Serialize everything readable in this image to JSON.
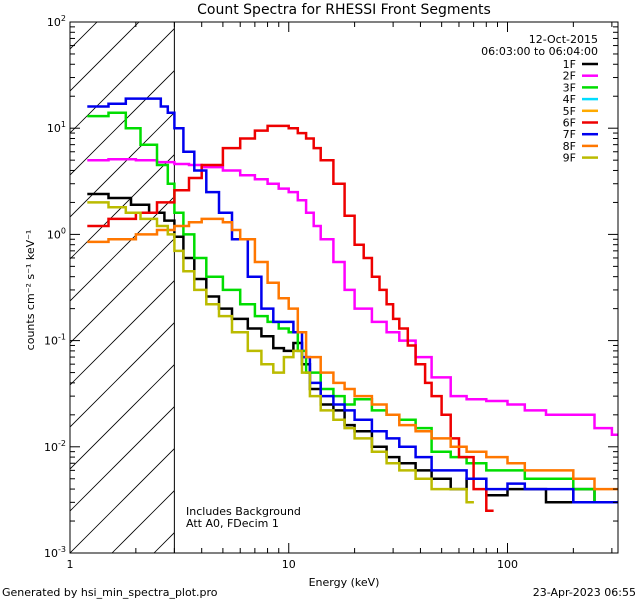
{
  "chart_data": {
    "type": "line",
    "title": "Count Spectra for RHESSI Front Segments",
    "date": "12-Oct-2015",
    "time_range": "06:03:00 to 06:04:00",
    "xlabel": "Energy (keV)",
    "ylabel": "counts cm⁻² s⁻¹ keV⁻¹",
    "x_scale": "log",
    "y_scale": "log",
    "xlim": [
      1,
      320
    ],
    "ylim": [
      0.001,
      100
    ],
    "x_ticks": [
      {
        "v": 1,
        "label": "1"
      },
      {
        "v": 10,
        "label": "10"
      },
      {
        "v": 100,
        "label": "100"
      }
    ],
    "y_ticks": [
      {
        "v": 0.001,
        "base": "10",
        "exp": "-3"
      },
      {
        "v": 0.01,
        "base": "10",
        "exp": "-2"
      },
      {
        "v": 0.1,
        "base": "10",
        "exp": "-1"
      },
      {
        "v": 1,
        "base": "10",
        "exp": "0"
      },
      {
        "v": 10,
        "base": "10",
        "exp": "1"
      },
      {
        "v": 100,
        "base": "10",
        "exp": "2"
      }
    ],
    "hatched_region": [
      1,
      3
    ],
    "annotations": [
      "Includes Background",
      "Att A0, FDecim 1"
    ],
    "footer_left": "Generated by hsi_min_spectra_plot.pro",
    "footer_right": "23-Apr-2023 06:55",
    "series": [
      {
        "name": "1F",
        "color": "#000000",
        "x": [
          1.2,
          1.5,
          1.9,
          2.3,
          2.7,
          3.0,
          3.3,
          3.7,
          4.2,
          4.8,
          5.5,
          6.5,
          7.5,
          8.5,
          9.5,
          10.5,
          11.5,
          12.5,
          14,
          16,
          18,
          20,
          24,
          28,
          32,
          38,
          45,
          55,
          65,
          80,
          100,
          120,
          150,
          200,
          250,
          300
        ],
        "y": [
          2.4,
          2.2,
          1.9,
          1.6,
          1.35,
          0.95,
          0.6,
          0.38,
          0.26,
          0.2,
          0.16,
          0.13,
          0.11,
          0.085,
          0.08,
          0.095,
          0.06,
          0.035,
          0.025,
          0.022,
          0.016,
          0.014,
          0.01,
          0.008,
          0.007,
          0.006,
          0.005,
          0.004,
          0.005,
          0.0035,
          0.004,
          0.004,
          0.003,
          0.004,
          0.003,
          0.003
        ]
      },
      {
        "name": "2F",
        "color": "#ff00ff",
        "x": [
          1.2,
          1.5,
          2,
          2.5,
          3,
          3.5,
          4,
          5,
          6,
          7,
          8,
          9,
          10,
          11,
          12,
          13,
          14,
          16,
          18,
          20,
          24,
          28,
          32,
          38,
          45,
          55,
          65,
          80,
          100,
          120,
          150,
          200,
          250,
          300
        ],
        "y": [
          5.0,
          5.1,
          5.0,
          4.8,
          4.6,
          4.5,
          4.3,
          4.0,
          3.6,
          3.3,
          3.0,
          2.7,
          2.5,
          2.1,
          1.6,
          1.2,
          0.9,
          0.55,
          0.3,
          0.2,
          0.15,
          0.12,
          0.1,
          0.07,
          0.045,
          0.03,
          0.028,
          0.027,
          0.025,
          0.022,
          0.02,
          0.02,
          0.015,
          0.013
        ]
      },
      {
        "name": "3F",
        "color": "#00dd00",
        "x": [
          1.2,
          1.5,
          1.8,
          2.1,
          2.5,
          2.8,
          3.0,
          3.3,
          3.7,
          4.2,
          5,
          6,
          7,
          8,
          9,
          10,
          11,
          12,
          14,
          16,
          18,
          20,
          24,
          28,
          32,
          38,
          45,
          55,
          65,
          80,
          100,
          120,
          150,
          200,
          250,
          300
        ],
        "y": [
          13,
          14,
          10,
          7,
          4.5,
          3.0,
          1.6,
          1.0,
          0.6,
          0.4,
          0.3,
          0.22,
          0.17,
          0.15,
          0.13,
          0.12,
          0.08,
          0.05,
          0.035,
          0.03,
          0.025,
          0.028,
          0.022,
          0.02,
          0.018,
          0.015,
          0.009,
          0.008,
          0.007,
          0.006,
          0.006,
          0.005,
          0.005,
          0.004,
          0.003,
          0.003
        ]
      },
      {
        "name": "4F",
        "color": "#00ddff",
        "x": [],
        "y": []
      },
      {
        "name": "5F",
        "color": "#ffaa00",
        "x": [],
        "y": []
      },
      {
        "name": "6F",
        "color": "#ee0000",
        "x": [
          1.2,
          1.5,
          2,
          2.5,
          3,
          3.5,
          4,
          5,
          6,
          7,
          8,
          9,
          10,
          11,
          12,
          13,
          14,
          16,
          18,
          20,
          22,
          24,
          26,
          28,
          30,
          32,
          35,
          38,
          42,
          45,
          50,
          55,
          60,
          70,
          80
        ],
        "y": [
          1.2,
          1.4,
          1.6,
          2.0,
          2.6,
          3.4,
          4.5,
          6.5,
          8.0,
          9.5,
          10.5,
          10.5,
          10.0,
          9.0,
          8.0,
          6.5,
          5.0,
          3.0,
          1.5,
          0.8,
          0.6,
          0.4,
          0.3,
          0.22,
          0.16,
          0.13,
          0.09,
          0.06,
          0.04,
          0.03,
          0.02,
          0.012,
          0.008,
          0.004,
          0.0025
        ]
      },
      {
        "name": "7F",
        "color": "#0000ee",
        "x": [
          1.2,
          1.5,
          1.8,
          2.2,
          2.6,
          2.8,
          3.0,
          3.3,
          3.7,
          4.2,
          4.8,
          5.5,
          6.5,
          7.5,
          8.5,
          9.5,
          10.5,
          11.5,
          12.5,
          14,
          16,
          18,
          20,
          24,
          28,
          32,
          38,
          45,
          55,
          65,
          80,
          100,
          120,
          150,
          200,
          250,
          300
        ],
        "y": [
          16,
          17,
          19,
          19,
          16,
          14,
          10,
          6,
          4,
          2.5,
          1.6,
          0.9,
          0.4,
          0.2,
          0.15,
          0.15,
          0.12,
          0.07,
          0.04,
          0.03,
          0.025,
          0.022,
          0.018,
          0.014,
          0.012,
          0.01,
          0.008,
          0.006,
          0.006,
          0.005,
          0.004,
          0.0045,
          0.004,
          0.004,
          0.003,
          0.003,
          0.003
        ]
      },
      {
        "name": "8F",
        "color": "#ff7700",
        "x": [
          1.2,
          1.5,
          2,
          2.5,
          3,
          3.5,
          4,
          4.5,
          5,
          5.5,
          6,
          7,
          8,
          9,
          10,
          11,
          12,
          14,
          16,
          18,
          20,
          24,
          28,
          32,
          38,
          45,
          55,
          65,
          80,
          100,
          120,
          150,
          200,
          250,
          300
        ],
        "y": [
          0.85,
          0.9,
          1.0,
          1.1,
          1.2,
          1.3,
          1.4,
          1.4,
          1.3,
          1.1,
          0.9,
          0.55,
          0.35,
          0.25,
          0.2,
          0.12,
          0.07,
          0.05,
          0.04,
          0.035,
          0.03,
          0.025,
          0.02,
          0.016,
          0.014,
          0.012,
          0.01,
          0.009,
          0.008,
          0.007,
          0.006,
          0.006,
          0.005,
          0.004,
          0.004
        ]
      },
      {
        "name": "9F",
        "color": "#bbbb00",
        "x": [
          1.2,
          1.5,
          1.8,
          2.1,
          2.5,
          2.8,
          3.0,
          3.3,
          3.7,
          4.2,
          4.8,
          5.5,
          6.5,
          7.5,
          8.5,
          9.5,
          10.5,
          11.5,
          12.5,
          14,
          16,
          18,
          20,
          24,
          28,
          32,
          38,
          45,
          55,
          65
        ],
        "y": [
          2.0,
          1.8,
          1.6,
          1.4,
          1.2,
          1.0,
          0.7,
          0.45,
          0.3,
          0.22,
          0.17,
          0.12,
          0.08,
          0.06,
          0.05,
          0.07,
          0.08,
          0.05,
          0.03,
          0.022,
          0.018,
          0.015,
          0.012,
          0.009,
          0.007,
          0.006,
          0.005,
          0.004,
          0.004,
          0.003
        ]
      }
    ]
  }
}
